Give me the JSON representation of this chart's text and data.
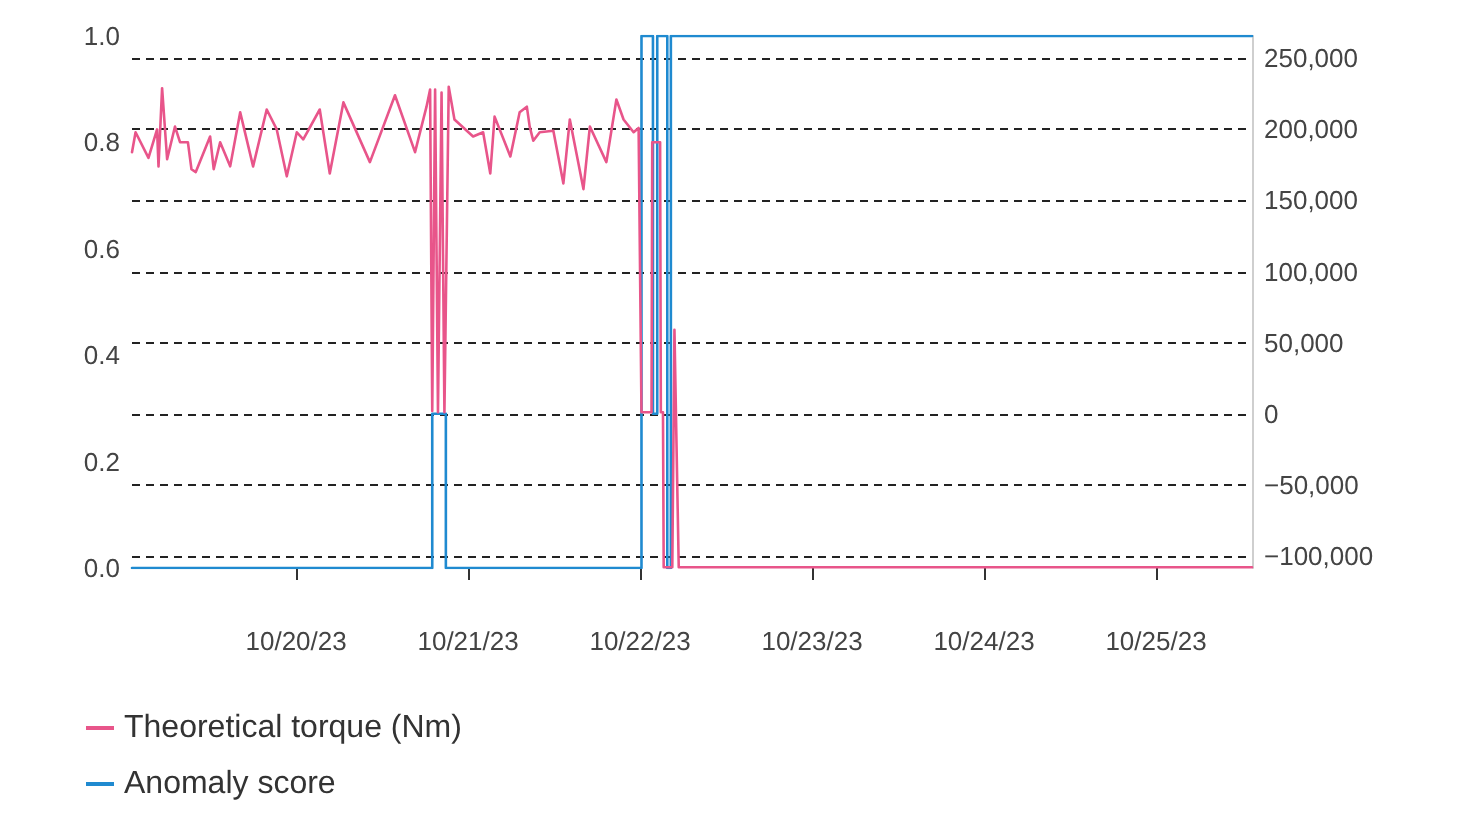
{
  "chart_data": {
    "type": "line",
    "xlim": [
      "--10-19T01:06",
      "--10-25T13:24"
    ],
    "xticks": [
      {
        "value": "--10-20",
        "label": "10/20/23"
      },
      {
        "value": "--10-21",
        "label": "10/21/23"
      },
      {
        "value": "--10-22",
        "label": "10/22/23"
      },
      {
        "value": "--10-23",
        "label": "10/23/23"
      },
      {
        "value": "--10-24",
        "label": "10/24/23"
      },
      {
        "value": "--10-25",
        "label": "10/25/23"
      }
    ],
    "ylim": [
      0,
      1
    ],
    "yticks": [
      {
        "value": 0,
        "label": "0.0"
      },
      {
        "value": 0.2,
        "label": "0.2"
      },
      {
        "value": 0.4,
        "label": "0.4"
      },
      {
        "value": 0.6,
        "label": "0.6"
      },
      {
        "value": 0.8,
        "label": "0.8"
      },
      {
        "value": 1,
        "label": "1.0"
      }
    ],
    "y2lim": [
      -108500,
      265700
    ],
    "y2ticks": [
      {
        "value": -100000,
        "label": "−100,000"
      },
      {
        "value": -50000,
        "label": "−50,000"
      },
      0,
      {
        "value": 50000,
        "label": "50,000"
      },
      {
        "value": 100000,
        "label": "100,000"
      },
      {
        "value": 150000,
        "label": "150,000"
      },
      {
        "value": 200000,
        "label": "200,000"
      },
      {
        "value": 250000,
        "label": "250,000"
      }
    ],
    "grid": "y2",
    "legend": "bottom left",
    "marker": "none",
    "series": [
      {
        "name": "Theoretical torque (Nm)",
        "axis": "y2",
        "color": "#e8558a",
        "x": [
          "--10-19T01:06",
          "--10-19T01:36",
          "--10-19T03:24",
          "--10-19T04:36",
          "--10-19T04:48",
          "--10-19T05:18",
          "--10-19T06:00",
          "--10-19T07:06",
          "--10-19T07:48",
          "--10-19T08:54",
          "--10-19T09:24",
          "--10-19T10:00",
          "--10-19T12:00",
          "--10-19T12:30",
          "--10-19T13:24",
          "--10-19T14:48",
          "--10-19T16:12",
          "--10-19T18:00",
          "--10-19T19:54",
          "--10-19T21:18",
          "--10-19T22:42",
          "--10-20T00:06",
          "--10-20T01:00",
          "--10-20T03:18",
          "--10-20T04:42",
          "--10-20T06:36",
          "--10-20T10:18",
          "--10-20T13:48",
          "--10-20T16:36",
          "--10-20T18:12",
          "--10-20T18:42",
          "--10-20T19:00",
          "--10-20T19:24",
          "--10-20T19:48",
          "--10-20T20:18",
          "--10-20T20:42",
          "--10-20T21:18",
          "--10-20T22:06",
          "--10-21T00:42",
          "--10-21T02:06",
          "--10-21T03:06",
          "--10-21T03:42",
          "--10-21T05:54",
          "--10-21T07:12",
          "--10-21T08:12",
          "--10-21T08:36",
          "--10-21T09:06",
          "--10-21T10:00",
          "--10-21T11:54",
          "--10-21T13:18",
          "--10-21T14:12",
          "--10-21T16:06",
          "--10-21T17:00",
          "--10-21T19:18",
          "--10-21T20:42",
          "--10-21T21:42",
          "--10-21T23:06",
          "--10-21T23:48",
          "--10-22T00:12",
          "--10-22T01:36",
          "--10-22T01:42",
          "--10-22T02:48",
          "--10-22T02:54",
          "--10-22T03:12",
          "--10-22T03:18",
          "--10-22T04:30",
          "--10-22T04:48",
          "--10-22T05:24",
          "--10-25T13:24"
        ],
        "values": [
          184000,
          198000,
          180000,
          200000,
          174000,
          229000,
          179000,
          202000,
          191000,
          191000,
          172000,
          170000,
          195000,
          172000,
          191000,
          174000,
          212000,
          174000,
          214000,
          200000,
          167000,
          198000,
          193000,
          214000,
          169000,
          219000,
          177000,
          224000,
          184000,
          216000,
          228000,
          2000,
          228000,
          1000,
          226000,
          1000,
          230000,
          207000,
          195000,
          198000,
          169000,
          209000,
          181000,
          212000,
          216000,
          202000,
          192000,
          198000,
          199000,
          162000,
          207000,
          158000,
          202000,
          177000,
          221000,
          207000,
          198000,
          201000,
          1000,
          1000,
          191000,
          191000,
          1000,
          1000,
          -108000,
          -108000,
          59000,
          -108000,
          -108000
        ]
      },
      {
        "name": "Anomaly score",
        "type": "step",
        "axis": "y",
        "color": "#1f8ad0",
        "x": [
          "--10-19T01:06",
          "--10-20T19:00",
          "--10-20T20:54",
          "--10-22T00:12",
          "--10-22T01:48",
          "--10-22T02:24",
          "--10-22T03:48",
          "--10-22T04:18",
          "--10-25T13:24"
        ],
        "values": [
          0,
          0.29,
          0,
          1,
          0.29,
          1,
          0,
          1,
          1
        ]
      }
    ]
  }
}
